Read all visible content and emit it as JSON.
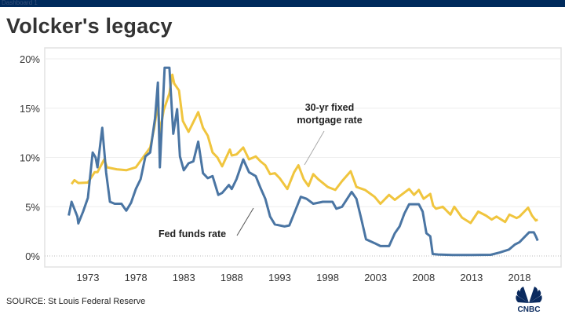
{
  "header": {
    "dashboard_label": "Dashboard 1",
    "title": "Volcker's legacy"
  },
  "footer": {
    "source": "SOURCE: St Louis Federal Reserve",
    "logo": "CNBC"
  },
  "colors": {
    "fed_funds": "#4a75a3",
    "mortgage": "#f0c53e",
    "topbar": "#002a5c"
  },
  "chart_data": {
    "type": "line",
    "title": "Volcker's legacy",
    "xlabel": "",
    "ylabel": "",
    "xlim": [
      1969,
      2022
    ],
    "ylim": [
      0,
      20
    ],
    "x_ticks": [
      1973,
      1978,
      1983,
      1988,
      1993,
      1998,
      2003,
      2008,
      2013,
      2018
    ],
    "x_tick_labels": [
      "1973",
      "1978",
      "1983",
      "1988",
      "1993",
      "1998",
      "2003",
      "2008",
      "2013",
      "2018"
    ],
    "y_ticks": [
      0,
      5,
      10,
      15,
      20
    ],
    "y_tick_labels": [
      "0%",
      "5%",
      "10%",
      "15%",
      "20%"
    ],
    "grid": true,
    "legend": "none (direct labels)",
    "series": [
      {
        "name": "30-yr fixed mortgage rate",
        "label": "30-yr fixed\nmortgage rate",
        "x": [
          1971.3,
          1971.6,
          1972,
          1973,
          1973.7,
          1974,
          1974.7,
          1975,
          1976,
          1977,
          1978,
          1978.9,
          1979.5,
          1979.9,
          1980.3,
          1980.5,
          1980.9,
          1981.5,
          1981.8,
          1982,
          1982.5,
          1982.9,
          1983.5,
          1984.5,
          1985,
          1985.5,
          1986,
          1986.5,
          1987,
          1987.8,
          1988,
          1988.5,
          1989.2,
          1989.8,
          1990.5,
          1991,
          1991.5,
          1992,
          1992.5,
          1993,
          1993.8,
          1994.5,
          1994.95,
          1995.5,
          1996,
          1996.5,
          1997,
          1998,
          1998.8,
          1999.5,
          2000.4,
          2001,
          2001.9,
          2002.9,
          2003.5,
          2004.4,
          2005,
          2006.5,
          2007,
          2007.5,
          2008,
          2008.7,
          2009,
          2009.3,
          2010,
          2010.8,
          2011.2,
          2012,
          2012.9,
          2013.7,
          2014.5,
          2015.1,
          2015.6,
          2016.5,
          2016.95,
          2017.7,
          2018,
          2018.9,
          2019.3,
          2019.7,
          2019.9
        ],
        "y": [
          7.3,
          7.7,
          7.4,
          7.45,
          8.5,
          8.5,
          9.8,
          9.0,
          8.8,
          8.7,
          9.0,
          10.2,
          11.0,
          12.9,
          15.5,
          12.5,
          14.8,
          16.5,
          18.4,
          17.5,
          16.8,
          13.7,
          12.6,
          14.6,
          13.0,
          12.2,
          10.5,
          10.0,
          9.1,
          10.8,
          10.2,
          10.3,
          11.0,
          9.8,
          10.1,
          9.6,
          9.2,
          8.3,
          8.4,
          7.9,
          6.8,
          8.5,
          9.2,
          7.8,
          7.1,
          8.3,
          7.8,
          7.0,
          6.7,
          7.6,
          8.6,
          7.0,
          6.7,
          6.0,
          5.3,
          6.2,
          5.7,
          6.8,
          6.2,
          6.7,
          5.8,
          6.3,
          5.1,
          4.8,
          5.0,
          4.2,
          5.0,
          3.9,
          3.35,
          4.5,
          4.1,
          3.7,
          4.0,
          3.45,
          4.2,
          3.85,
          4.0,
          4.9,
          4.1,
          3.6,
          3.7
        ]
      },
      {
        "name": "Fed funds rate",
        "label": "Fed funds rate",
        "x": [
          1971,
          1971.3,
          1971.9,
          1972,
          1972.5,
          1973,
          1973.5,
          1973.8,
          1974,
          1974.5,
          1974.9,
          1975.3,
          1975.8,
          1976.5,
          1977,
          1977.5,
          1978,
          1978.5,
          1979,
          1979.5,
          1980,
          1980.3,
          1980.5,
          1980.8,
          1981,
          1981.5,
          1981.9,
          1982.3,
          1982.6,
          1983,
          1983.5,
          1984,
          1984.5,
          1985,
          1985.5,
          1986,
          1986.6,
          1987,
          1987.7,
          1988,
          1988.5,
          1989.2,
          1989.8,
          1990.5,
          1991,
          1991.5,
          1992,
          1992.5,
          1993.5,
          1994,
          1994.5,
          1995.2,
          1995.8,
          1996.5,
          1997.5,
          1998.5,
          1998.9,
          1999.5,
          2000.5,
          2001,
          2001.5,
          2002,
          2002.9,
          2003.5,
          2004.4,
          2005,
          2005.5,
          2006,
          2006.5,
          2007.5,
          2007.9,
          2008.3,
          2008.7,
          2008.95,
          2009.5,
          2011,
          2013,
          2015,
          2015.95,
          2016.9,
          2017.5,
          2018,
          2018.5,
          2019,
          2019.5,
          2019.7,
          2019.9
        ],
        "y": [
          4.1,
          5.5,
          4.0,
          3.3,
          4.5,
          5.9,
          10.5,
          10.0,
          9.0,
          13.0,
          8.5,
          5.5,
          5.3,
          5.3,
          4.6,
          5.4,
          6.8,
          7.8,
          10.1,
          10.5,
          14.0,
          17.6,
          9.0,
          15.0,
          19.1,
          19.1,
          12.4,
          14.9,
          10.1,
          8.7,
          9.4,
          9.6,
          11.6,
          8.4,
          7.9,
          8.1,
          6.2,
          6.4,
          7.2,
          6.8,
          7.8,
          9.8,
          8.5,
          8.1,
          6.9,
          5.8,
          4.0,
          3.2,
          3.0,
          3.1,
          4.3,
          6.0,
          5.8,
          5.3,
          5.5,
          5.5,
          4.8,
          5.0,
          6.5,
          5.8,
          3.8,
          1.7,
          1.3,
          1.0,
          1.0,
          2.3,
          3.0,
          4.3,
          5.25,
          5.25,
          4.5,
          2.3,
          2.0,
          0.2,
          0.15,
          0.1,
          0.1,
          0.12,
          0.35,
          0.65,
          1.15,
          1.4,
          1.9,
          2.4,
          2.4,
          2.0,
          1.55
        ]
      }
    ]
  }
}
